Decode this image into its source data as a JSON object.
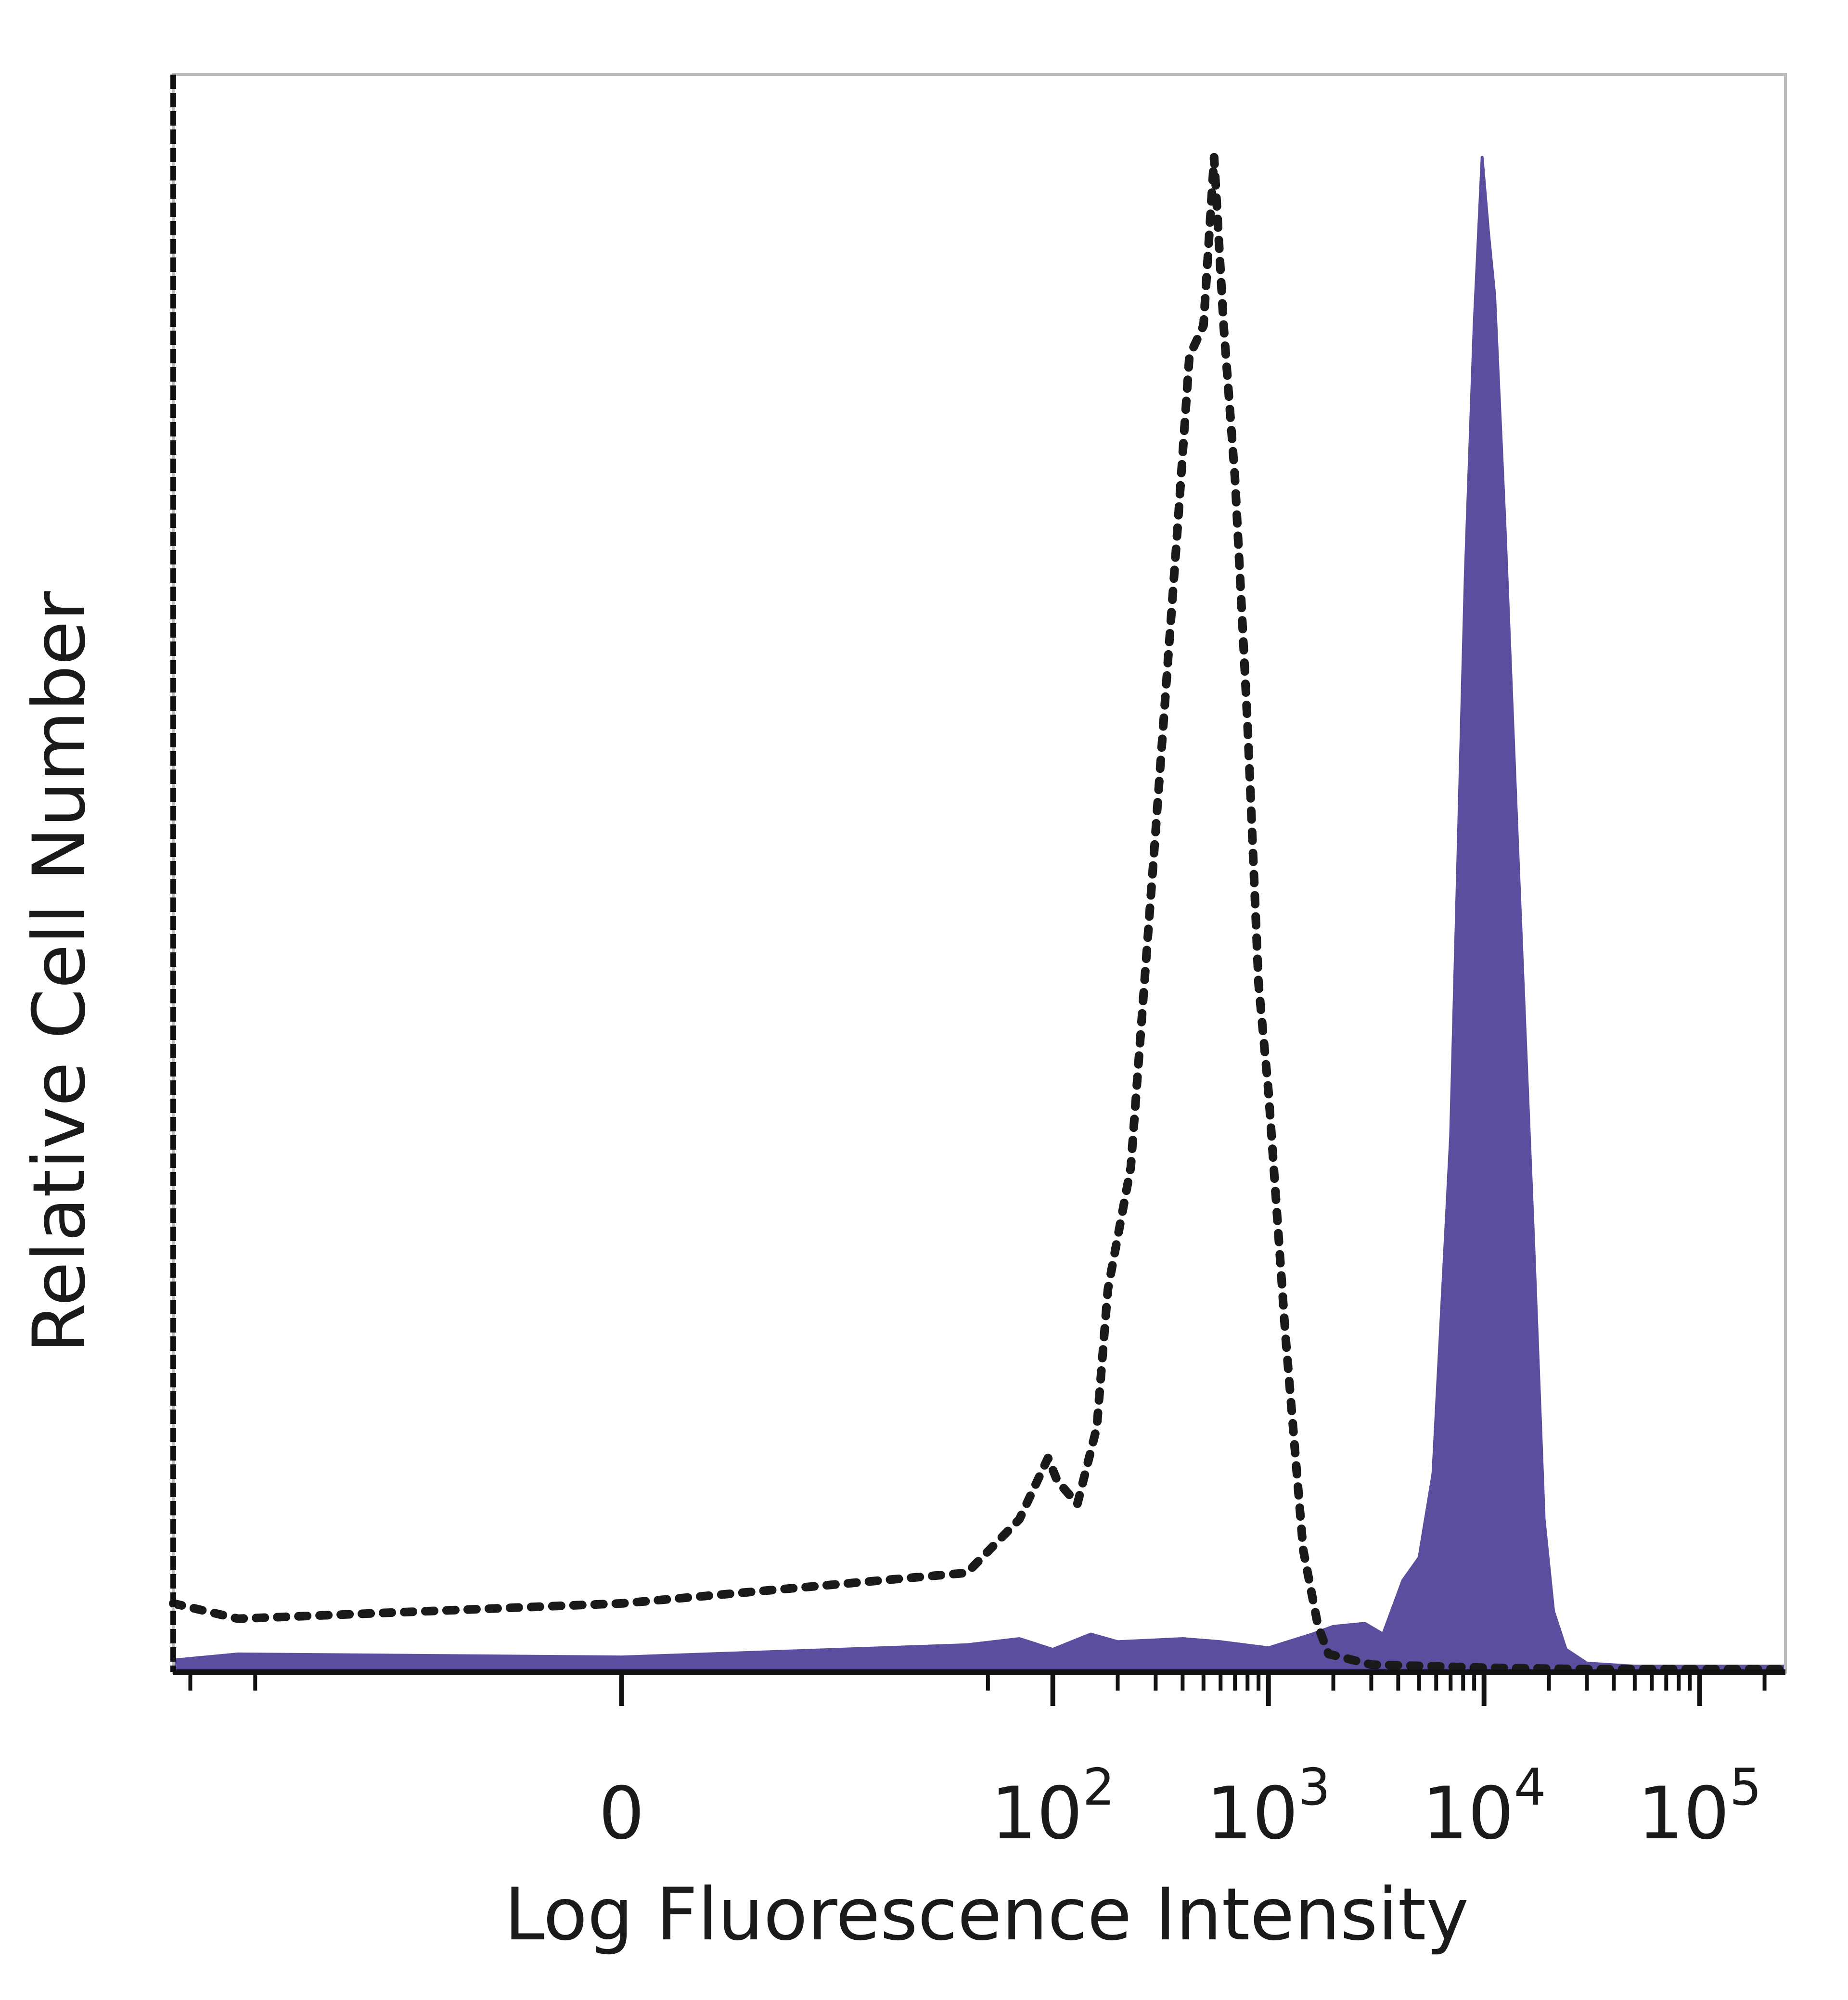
{
  "chart_data": {
    "type": "area",
    "xlabel": "Log Fluorescence Intensity",
    "ylabel": "Relative Cell Number",
    "x_scale": "biexponential",
    "xlim": [
      -120,
      250000
    ],
    "ylim": [
      0,
      1
    ],
    "x_ticks": [
      {
        "value": 0,
        "base": "0",
        "exp": ""
      },
      {
        "value": 100,
        "base": "10",
        "exp": "2"
      },
      {
        "value": 1000,
        "base": "10",
        "exp": "3"
      },
      {
        "value": 10000,
        "base": "10",
        "exp": "4"
      },
      {
        "value": 100000,
        "base": "10",
        "exp": "5"
      }
    ],
    "minor_ticks": [
      -100,
      -50,
      50,
      200,
      300,
      400,
      500,
      600,
      700,
      800,
      900,
      2000,
      3000,
      4000,
      5000,
      6000,
      7000,
      8000,
      9000,
      20000,
      30000,
      40000,
      50000,
      60000,
      70000,
      80000,
      90000,
      200000
    ],
    "series": [
      {
        "style": "dotted",
        "color": "#1a1a1a",
        "points": [
          [
            -120,
            0.045
          ],
          [
            -60,
            0.035
          ],
          [
            0,
            0.045
          ],
          [
            40,
            0.065
          ],
          [
            70,
            0.1
          ],
          [
            95,
            0.14
          ],
          [
            105,
            0.125
          ],
          [
            130,
            0.11
          ],
          [
            160,
            0.16
          ],
          [
            180,
            0.25
          ],
          [
            230,
            0.33
          ],
          [
            300,
            0.55
          ],
          [
            380,
            0.75
          ],
          [
            430,
            0.86
          ],
          [
            500,
            0.88
          ],
          [
            560,
            0.99
          ],
          [
            620,
            0.88
          ],
          [
            700,
            0.78
          ],
          [
            800,
            0.62
          ],
          [
            900,
            0.45
          ],
          [
            1000,
            0.38
          ],
          [
            1200,
            0.22
          ],
          [
            1450,
            0.08
          ],
          [
            1700,
            0.03
          ],
          [
            1900,
            0.012
          ],
          [
            3000,
            0.005
          ],
          [
            10000,
            0.003
          ],
          [
            30000,
            0.002
          ],
          [
            250000,
            0.002
          ]
        ]
      },
      {
        "style": "filled",
        "color": "#5a4f9e",
        "points": [
          [
            -120,
            0.008
          ],
          [
            -60,
            0.012
          ],
          [
            0,
            0.01
          ],
          [
            40,
            0.018
          ],
          [
            70,
            0.022
          ],
          [
            100,
            0.015
          ],
          [
            150,
            0.025
          ],
          [
            200,
            0.02
          ],
          [
            400,
            0.022
          ],
          [
            600,
            0.02
          ],
          [
            1000,
            0.016
          ],
          [
            1600,
            0.025
          ],
          [
            2000,
            0.03
          ],
          [
            2800,
            0.032
          ],
          [
            3400,
            0.025
          ],
          [
            4200,
            0.06
          ],
          [
            5000,
            0.075
          ],
          [
            5800,
            0.13
          ],
          [
            7000,
            0.35
          ],
          [
            8200,
            0.72
          ],
          [
            9000,
            0.88
          ],
          [
            9800,
            0.99
          ],
          [
            10500,
            0.94
          ],
          [
            11200,
            0.9
          ],
          [
            12500,
            0.75
          ],
          [
            14500,
            0.52
          ],
          [
            17000,
            0.28
          ],
          [
            19000,
            0.1
          ],
          [
            21000,
            0.04
          ],
          [
            24000,
            0.015
          ],
          [
            30000,
            0.006
          ],
          [
            50000,
            0.004
          ],
          [
            100000,
            0.004
          ],
          [
            250000,
            0.004
          ]
        ]
      }
    ]
  }
}
